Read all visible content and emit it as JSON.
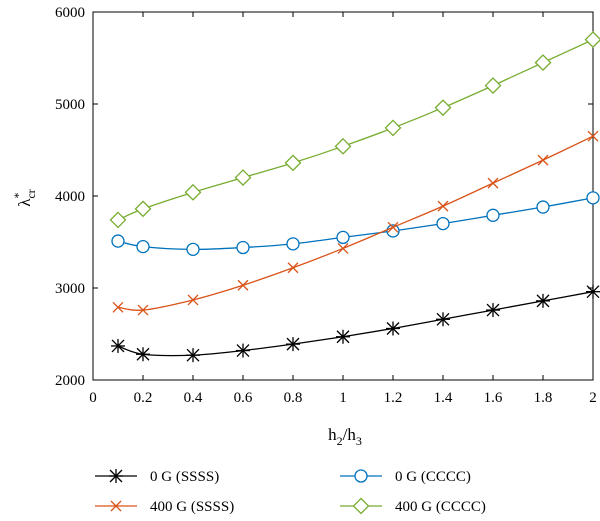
{
  "chart_data": {
    "type": "line",
    "xlabel": {
      "main": "h",
      "sub1": "2",
      "sep": "/h",
      "sub2": "3"
    },
    "ylabel": {
      "main": "λ",
      "sup": "*",
      "sub": "cr"
    },
    "xlim": [
      0,
      2
    ],
    "ylim": [
      2000,
      6000
    ],
    "xticks": [
      0,
      0.2,
      0.4,
      0.6,
      0.8,
      1,
      1.2,
      1.4,
      1.6,
      1.8,
      2
    ],
    "xtick_labels": [
      "0",
      "0.2",
      "0.4",
      "0.6",
      "0.8",
      "1",
      "1.2",
      "1.4",
      "1.6",
      "1.8",
      "2"
    ],
    "yticks": [
      2000,
      3000,
      4000,
      5000,
      6000
    ],
    "ytick_labels": [
      "2000",
      "3000",
      "4000",
      "5000",
      "6000"
    ],
    "grid": false,
    "legend_placement": "bottom",
    "x": [
      0.1,
      0.2,
      0.4,
      0.6,
      0.8,
      1.0,
      1.2,
      1.4,
      1.6,
      1.8,
      2.0
    ],
    "series": [
      {
        "name": "0 G (SSSS)",
        "color": "#000000",
        "marker": "asterisk",
        "values": [
          2370,
          2280,
          2270,
          2320,
          2390,
          2470,
          2560,
          2660,
          2760,
          2860,
          2960
        ]
      },
      {
        "name": "0 G (CCCC)",
        "color": "#0072BD",
        "marker": "circle",
        "values": [
          3510,
          3450,
          3420,
          3440,
          3480,
          3550,
          3620,
          3700,
          3790,
          3880,
          3980
        ]
      },
      {
        "name": "400 G (SSSS)",
        "color": "#D95319",
        "marker": "x",
        "values": [
          2790,
          2760,
          2870,
          3030,
          3220,
          3430,
          3660,
          3890,
          4140,
          4390,
          4650
        ]
      },
      {
        "name": "400 G (CCCC)",
        "color": "#77AC30",
        "marker": "diamond",
        "values": [
          3740,
          3860,
          4040,
          4200,
          4360,
          4540,
          4740,
          4960,
          5200,
          5450,
          5700
        ]
      }
    ]
  }
}
